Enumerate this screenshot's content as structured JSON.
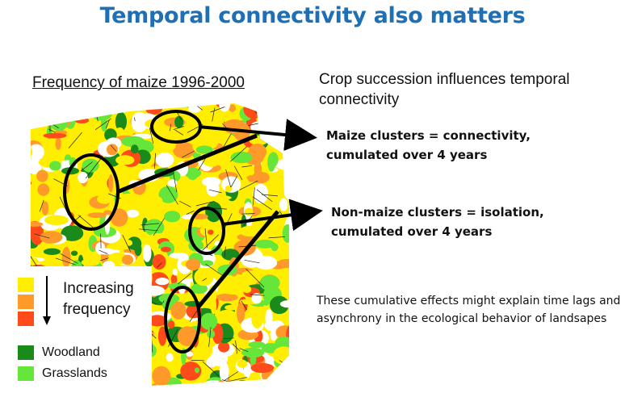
{
  "title": "Temporal connectivity also matters",
  "map_caption": "Frequency of maize 1996-2000",
  "crop_text": "Crop succession influences temporal connectivity",
  "maize": {
    "line1": "Maize clusters =  connectivity,",
    "line2": "cumulated over 4 years"
  },
  "nonmaize": {
    "line1": "Non-maize clusters =  isolation,",
    "line2": "cumulated over 4 years"
  },
  "effects_text": "These cumulative effects might explain time lags and asynchrony in the ecological behavior of landsapes",
  "legend": {
    "increasing": "Increasing",
    "frequency": "frequency",
    "woodland": "Woodland",
    "grasslands": "Grasslands"
  },
  "colors": {
    "title": "#1f6fb5",
    "freq_low": "#ffee00",
    "freq_mid": "#ff9a2a",
    "freq_high": "#ff4a1a",
    "woodland": "#1a8a1a",
    "grasslands": "#66e53a"
  }
}
